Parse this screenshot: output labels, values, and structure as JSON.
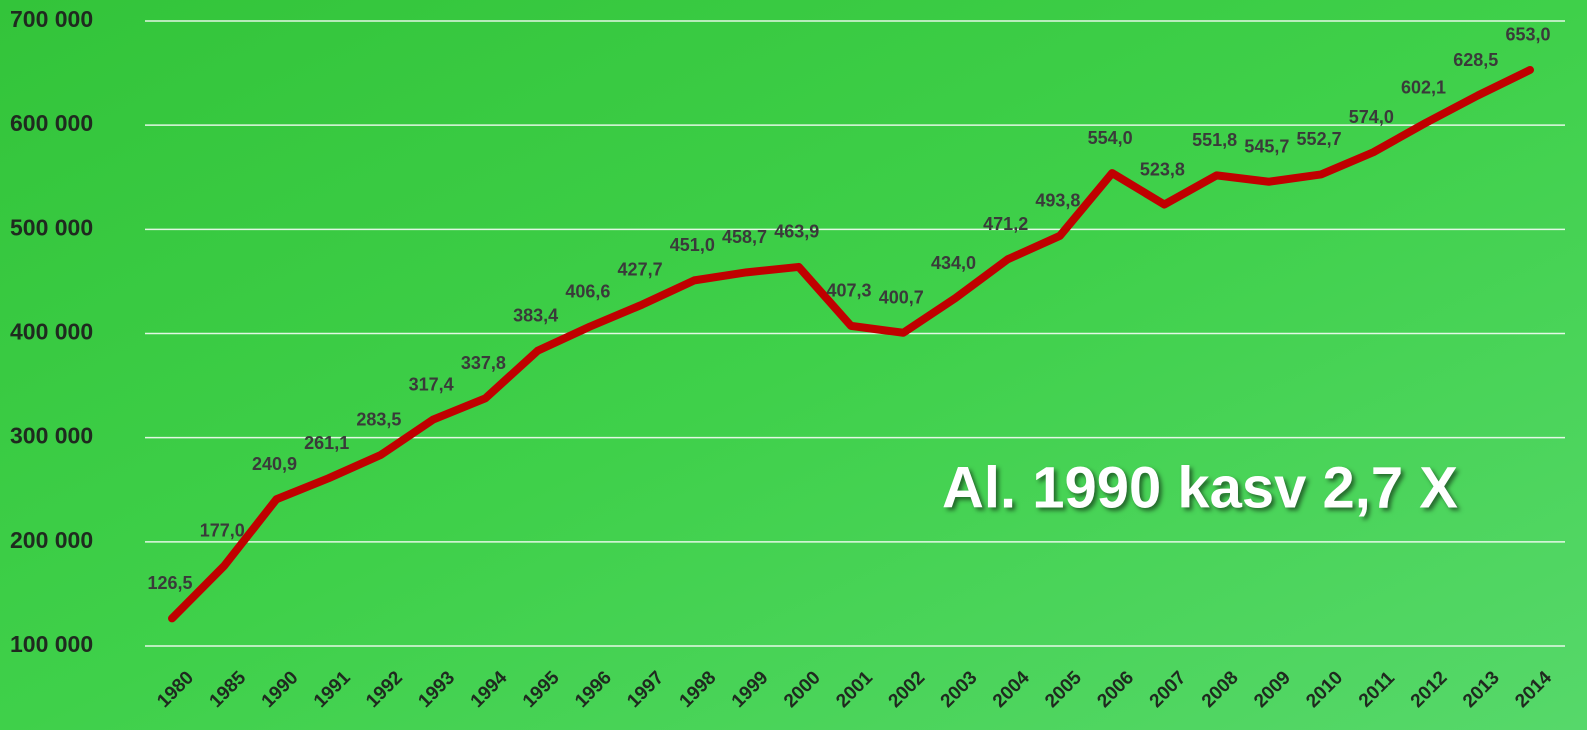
{
  "chart_data": {
    "type": "line",
    "categories": [
      "1980",
      "1985",
      "1990",
      "1991",
      "1992",
      "1993",
      "1994",
      "1995",
      "1996",
      "1997",
      "1998",
      "1999",
      "2000",
      "2001",
      "2002",
      "2003",
      "2004",
      "2005",
      "2006",
      "2007",
      "2008",
      "2009",
      "2010",
      "2011",
      "2012",
      "2013",
      "2014"
    ],
    "series": [
      {
        "color": "#c00000",
        "values": [
          126500,
          177000,
          240900,
          261100,
          283500,
          317400,
          337800,
          383400,
          406600,
          427700,
          451000,
          458700,
          463900,
          407300,
          400700,
          434000,
          471200,
          493800,
          554000,
          523800,
          551800,
          545700,
          552700,
          574000,
          602100,
          628500,
          653000
        ],
        "value_labels": [
          "126,5",
          "177,0",
          "240,9",
          "261,1",
          "283,5",
          "317,4",
          "337,8",
          "383,4",
          "406,6",
          "427,7",
          "451,0",
          "458,7",
          "463,9",
          "407,3",
          "400,7",
          "434,0",
          "471,2",
          "493,8",
          "554,0",
          "523,8",
          "551,8",
          "545,7",
          "552,7",
          "574,0",
          "602,1",
          "628,5",
          "653,0"
        ]
      }
    ],
    "ylim": [
      100000,
      700000
    ],
    "yticks": [
      {
        "value": 100000,
        "label": "100 000"
      },
      {
        "value": 200000,
        "label": "200 000"
      },
      {
        "value": 300000,
        "label": "300 000"
      },
      {
        "value": 400000,
        "label": "400 000"
      },
      {
        "value": 500000,
        "label": "500 000"
      },
      {
        "value": 600000,
        "label": "600 000"
      },
      {
        "value": 700000,
        "label": "700 000"
      }
    ],
    "grid": true,
    "annotation": "Al. 1990 kasv 2,7 X"
  }
}
